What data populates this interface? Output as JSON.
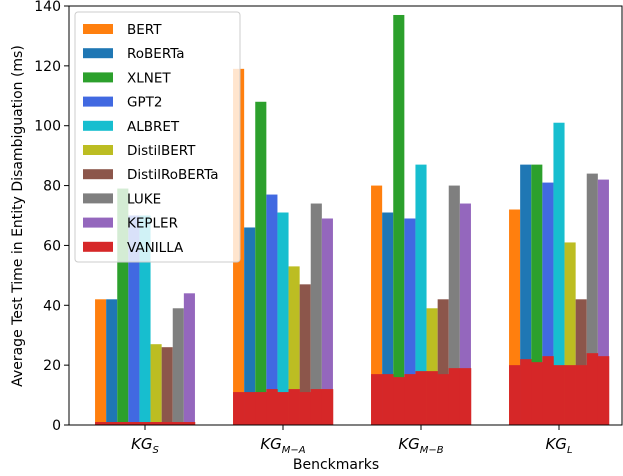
{
  "chart_data": {
    "type": "bar",
    "xlabel": "Benckmarks",
    "ylabel": "Average Test Time in Entity Disambiguation (ms)",
    "ylim": [
      0,
      140
    ],
    "yticks": [
      0,
      20,
      40,
      60,
      80,
      100,
      120,
      140
    ],
    "grid": false,
    "legend_position": "top-left",
    "categories": [
      {
        "base": "KG",
        "sub": "S"
      },
      {
        "base": "KG",
        "sub": "M−A"
      },
      {
        "base": "KG",
        "sub": "M−B"
      },
      {
        "base": "KG",
        "sub": "L"
      }
    ],
    "series": [
      {
        "name": "BERT",
        "color": "#ff7f0e",
        "values": [
          42,
          119,
          80,
          72
        ]
      },
      {
        "name": "RoBERTa",
        "color": "#1f77b4",
        "values": [
          42,
          66,
          71,
          87
        ]
      },
      {
        "name": "XLNET",
        "color": "#2ca02c",
        "values": [
          79,
          108,
          137,
          87
        ]
      },
      {
        "name": "GPT2",
        "color": "#4169e1",
        "values": [
          70,
          77,
          69,
          81
        ]
      },
      {
        "name": "ALBRET",
        "color": "#17becf",
        "values": [
          70,
          71,
          87,
          101
        ]
      },
      {
        "name": "DistilBERT",
        "color": "#bcbd22",
        "values": [
          27,
          53,
          39,
          61
        ]
      },
      {
        "name": "DistilRoBERTa",
        "color": "#8c564b",
        "values": [
          26,
          47,
          42,
          42
        ]
      },
      {
        "name": "LUKE",
        "color": "#7f7f7f",
        "values": [
          39,
          74,
          80,
          84
        ]
      },
      {
        "name": "KEPLER",
        "color": "#9467bd",
        "values": [
          44,
          69,
          74,
          82
        ]
      },
      {
        "name": "VANILLA",
        "color": "#d62728",
        "values": [
          [
            1,
            1,
            1,
            1,
            1,
            1,
            1,
            1,
            1
          ],
          [
            11,
            11,
            11,
            12,
            11,
            12,
            11,
            12,
            12
          ],
          [
            17,
            17,
            16,
            17,
            18,
            18,
            17,
            19,
            19
          ],
          [
            20,
            22,
            21,
            23,
            20,
            20,
            20,
            24,
            23
          ]
        ]
      }
    ]
  }
}
